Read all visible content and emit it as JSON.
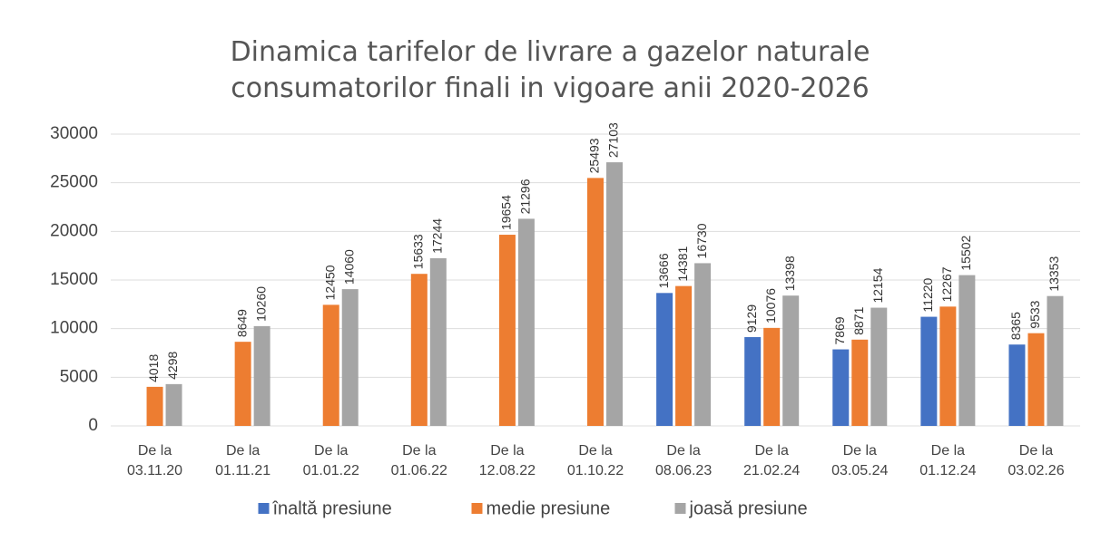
{
  "chart_data": {
    "type": "bar",
    "title": "Dinamica tarifelor de livrare a gazelor naturale consumatorilor finali in vigoare anii 2020-2026",
    "categories": [
      [
        "De la",
        "03.11.20"
      ],
      [
        "De la",
        "01.11.21"
      ],
      [
        "De la",
        "01.01.22"
      ],
      [
        "De la",
        "01.06.22"
      ],
      [
        "De la",
        "12.08.22"
      ],
      [
        "De la",
        "01.10.22"
      ],
      [
        "De la",
        "08.06.23"
      ],
      [
        "De la",
        "21.02.24"
      ],
      [
        "De la",
        "03.05.24"
      ],
      [
        "De la",
        "01.12.24"
      ],
      [
        "De la",
        "03.02.26"
      ]
    ],
    "series": [
      {
        "name": "înaltă presiune",
        "color": "#4472c4",
        "values": [
          null,
          null,
          null,
          null,
          null,
          null,
          13666,
          9129,
          7869,
          11220,
          8365
        ]
      },
      {
        "name": "medie presiune",
        "color": "#ed7d31",
        "values": [
          4018,
          8649,
          12450,
          15633,
          19654,
          25493,
          14381,
          10076,
          8871,
          12267,
          9533
        ]
      },
      {
        "name": "joasă presiune",
        "color": "#a5a5a5",
        "values": [
          4298,
          10260,
          14060,
          17244,
          21296,
          27103,
          16730,
          13398,
          12154,
          15502,
          13353
        ]
      }
    ],
    "ylim": [
      0,
      30000
    ],
    "yticks": [
      0,
      5000,
      10000,
      15000,
      20000,
      25000,
      30000
    ],
    "grid": true,
    "legend": "bottom"
  }
}
